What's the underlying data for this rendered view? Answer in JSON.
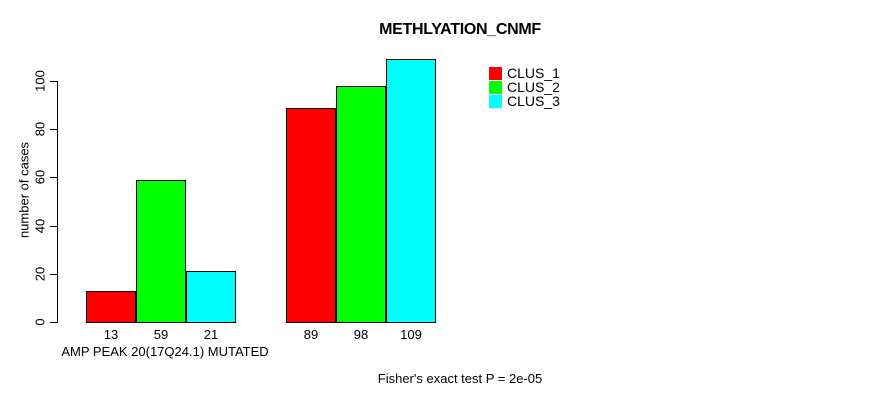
{
  "title": "METHLYATION_CNMF",
  "footer": "Fisher's exact test P = 2e-05",
  "chart_data": {
    "type": "bar",
    "title": "METHLYATION_CNMF",
    "xlabel": "AMP PEAK 20(17Q24.1) MUTATED",
    "ylabel": "number of cases",
    "categories": [
      "AMP PEAK 20(17Q24.1) MUTATED",
      ""
    ],
    "series": [
      {
        "name": "CLUS_1",
        "color": "#ff0000",
        "values": [
          13,
          89
        ]
      },
      {
        "name": "CLUS_2",
        "color": "#00ff00",
        "values": [
          59,
          98
        ]
      },
      {
        "name": "CLUS_3",
        "color": "#00ffff",
        "values": [
          21,
          109
        ]
      }
    ],
    "bar_value_labels": [
      [
        13,
        59,
        21
      ],
      [
        89,
        98,
        109
      ]
    ],
    "ylim": [
      0,
      110
    ],
    "yticks": [
      0,
      20,
      40,
      60,
      80,
      100
    ],
    "grid": false,
    "legend_position": "top-right",
    "annotation": "Fisher's exact test P = 2e-05"
  }
}
